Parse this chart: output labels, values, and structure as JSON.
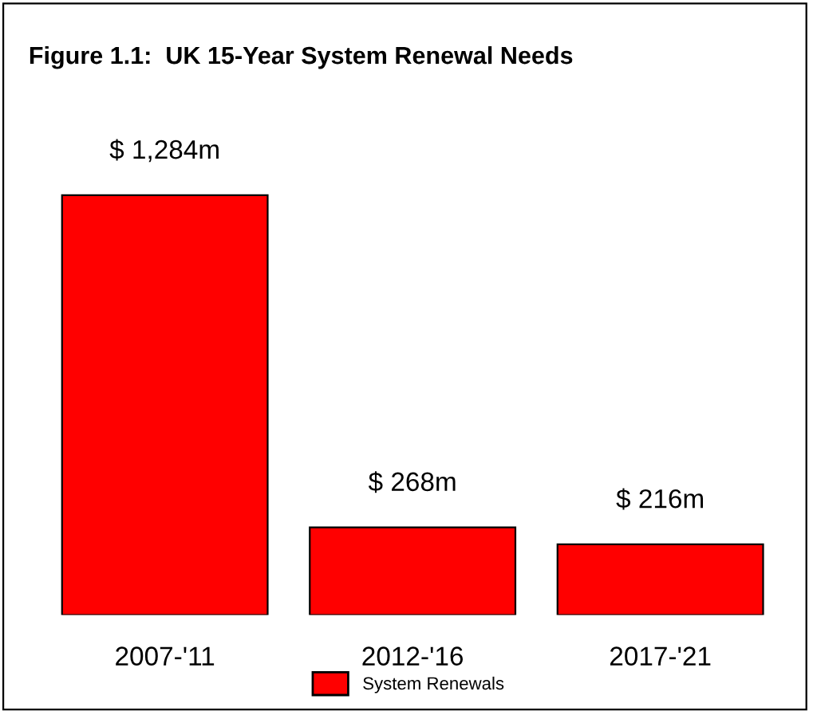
{
  "chart_data": {
    "type": "bar",
    "title": "Figure 1.1:  UK 15-Year System Renewal Needs",
    "categories": [
      "2007-'11",
      "2012-'16",
      "2017-'21"
    ],
    "series": [
      {
        "name": "System Renewals",
        "color": "#ff0000",
        "values": [
          1284,
          268,
          216
        ],
        "value_labels": [
          "$ 1,284m",
          "$ 268m",
          "$ 216m"
        ]
      }
    ],
    "legend": "bottom",
    "grid": false
  }
}
